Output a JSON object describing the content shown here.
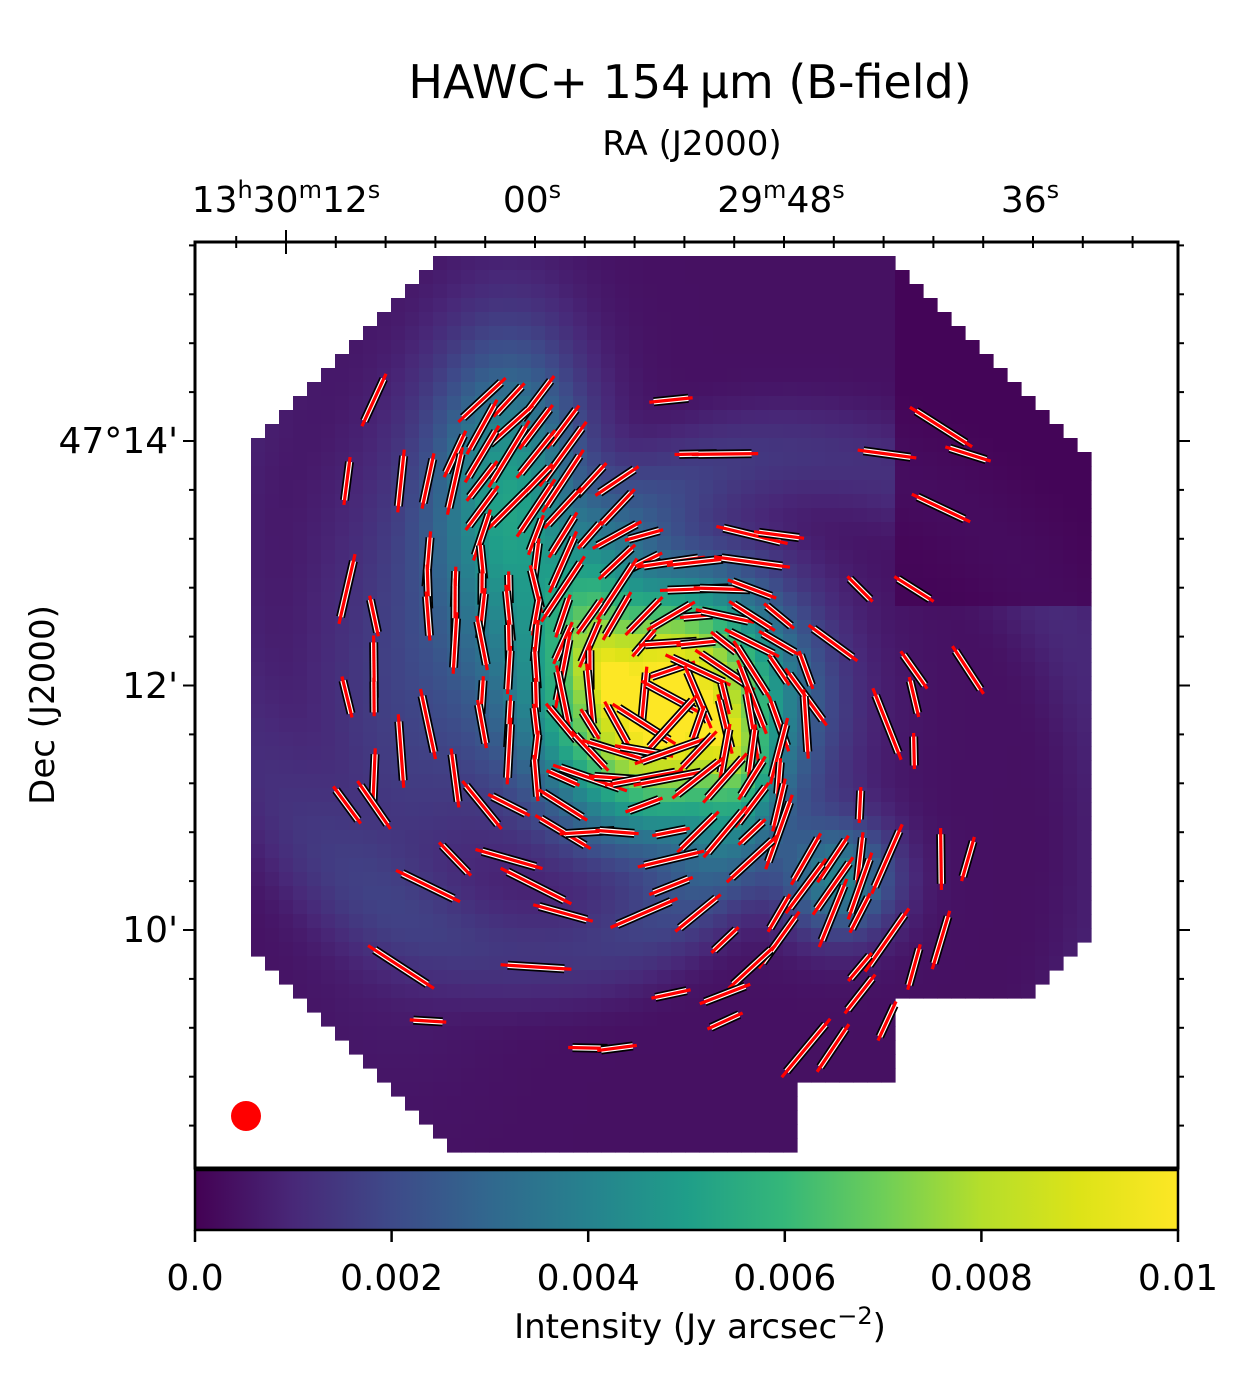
{
  "chart_data": {
    "type": "heatmap",
    "title": "HAWC+ 154 μm (B-field)",
    "top_axis_label": "RA (J2000)",
    "ra_ticks": [
      {
        "h": "13",
        "m": "30",
        "s": "12"
      },
      {
        "h": "",
        "m": "",
        "s": "00"
      },
      {
        "h": "",
        "m": "29",
        "s": "48"
      },
      {
        "h": "",
        "m": "",
        "s": "36"
      }
    ],
    "ylabel": "Dec (J2000)",
    "dec_ticks": [
      "47°14'",
      "12'",
      "10'"
    ],
    "colorbar": {
      "label_main": "Intensity (Jy arcsec",
      "label_exp": "−2",
      "label_close": ")",
      "range": [
        0.0,
        0.01
      ],
      "ticks": [
        "0.0",
        "0.002",
        "0.004",
        "0.006",
        "0.008",
        "0.01"
      ],
      "colormap": "viridis"
    },
    "beam_color": "#ff0000",
    "vector_color": "#ff0000",
    "vector_outline_color": "#000000",
    "grid": false
  }
}
